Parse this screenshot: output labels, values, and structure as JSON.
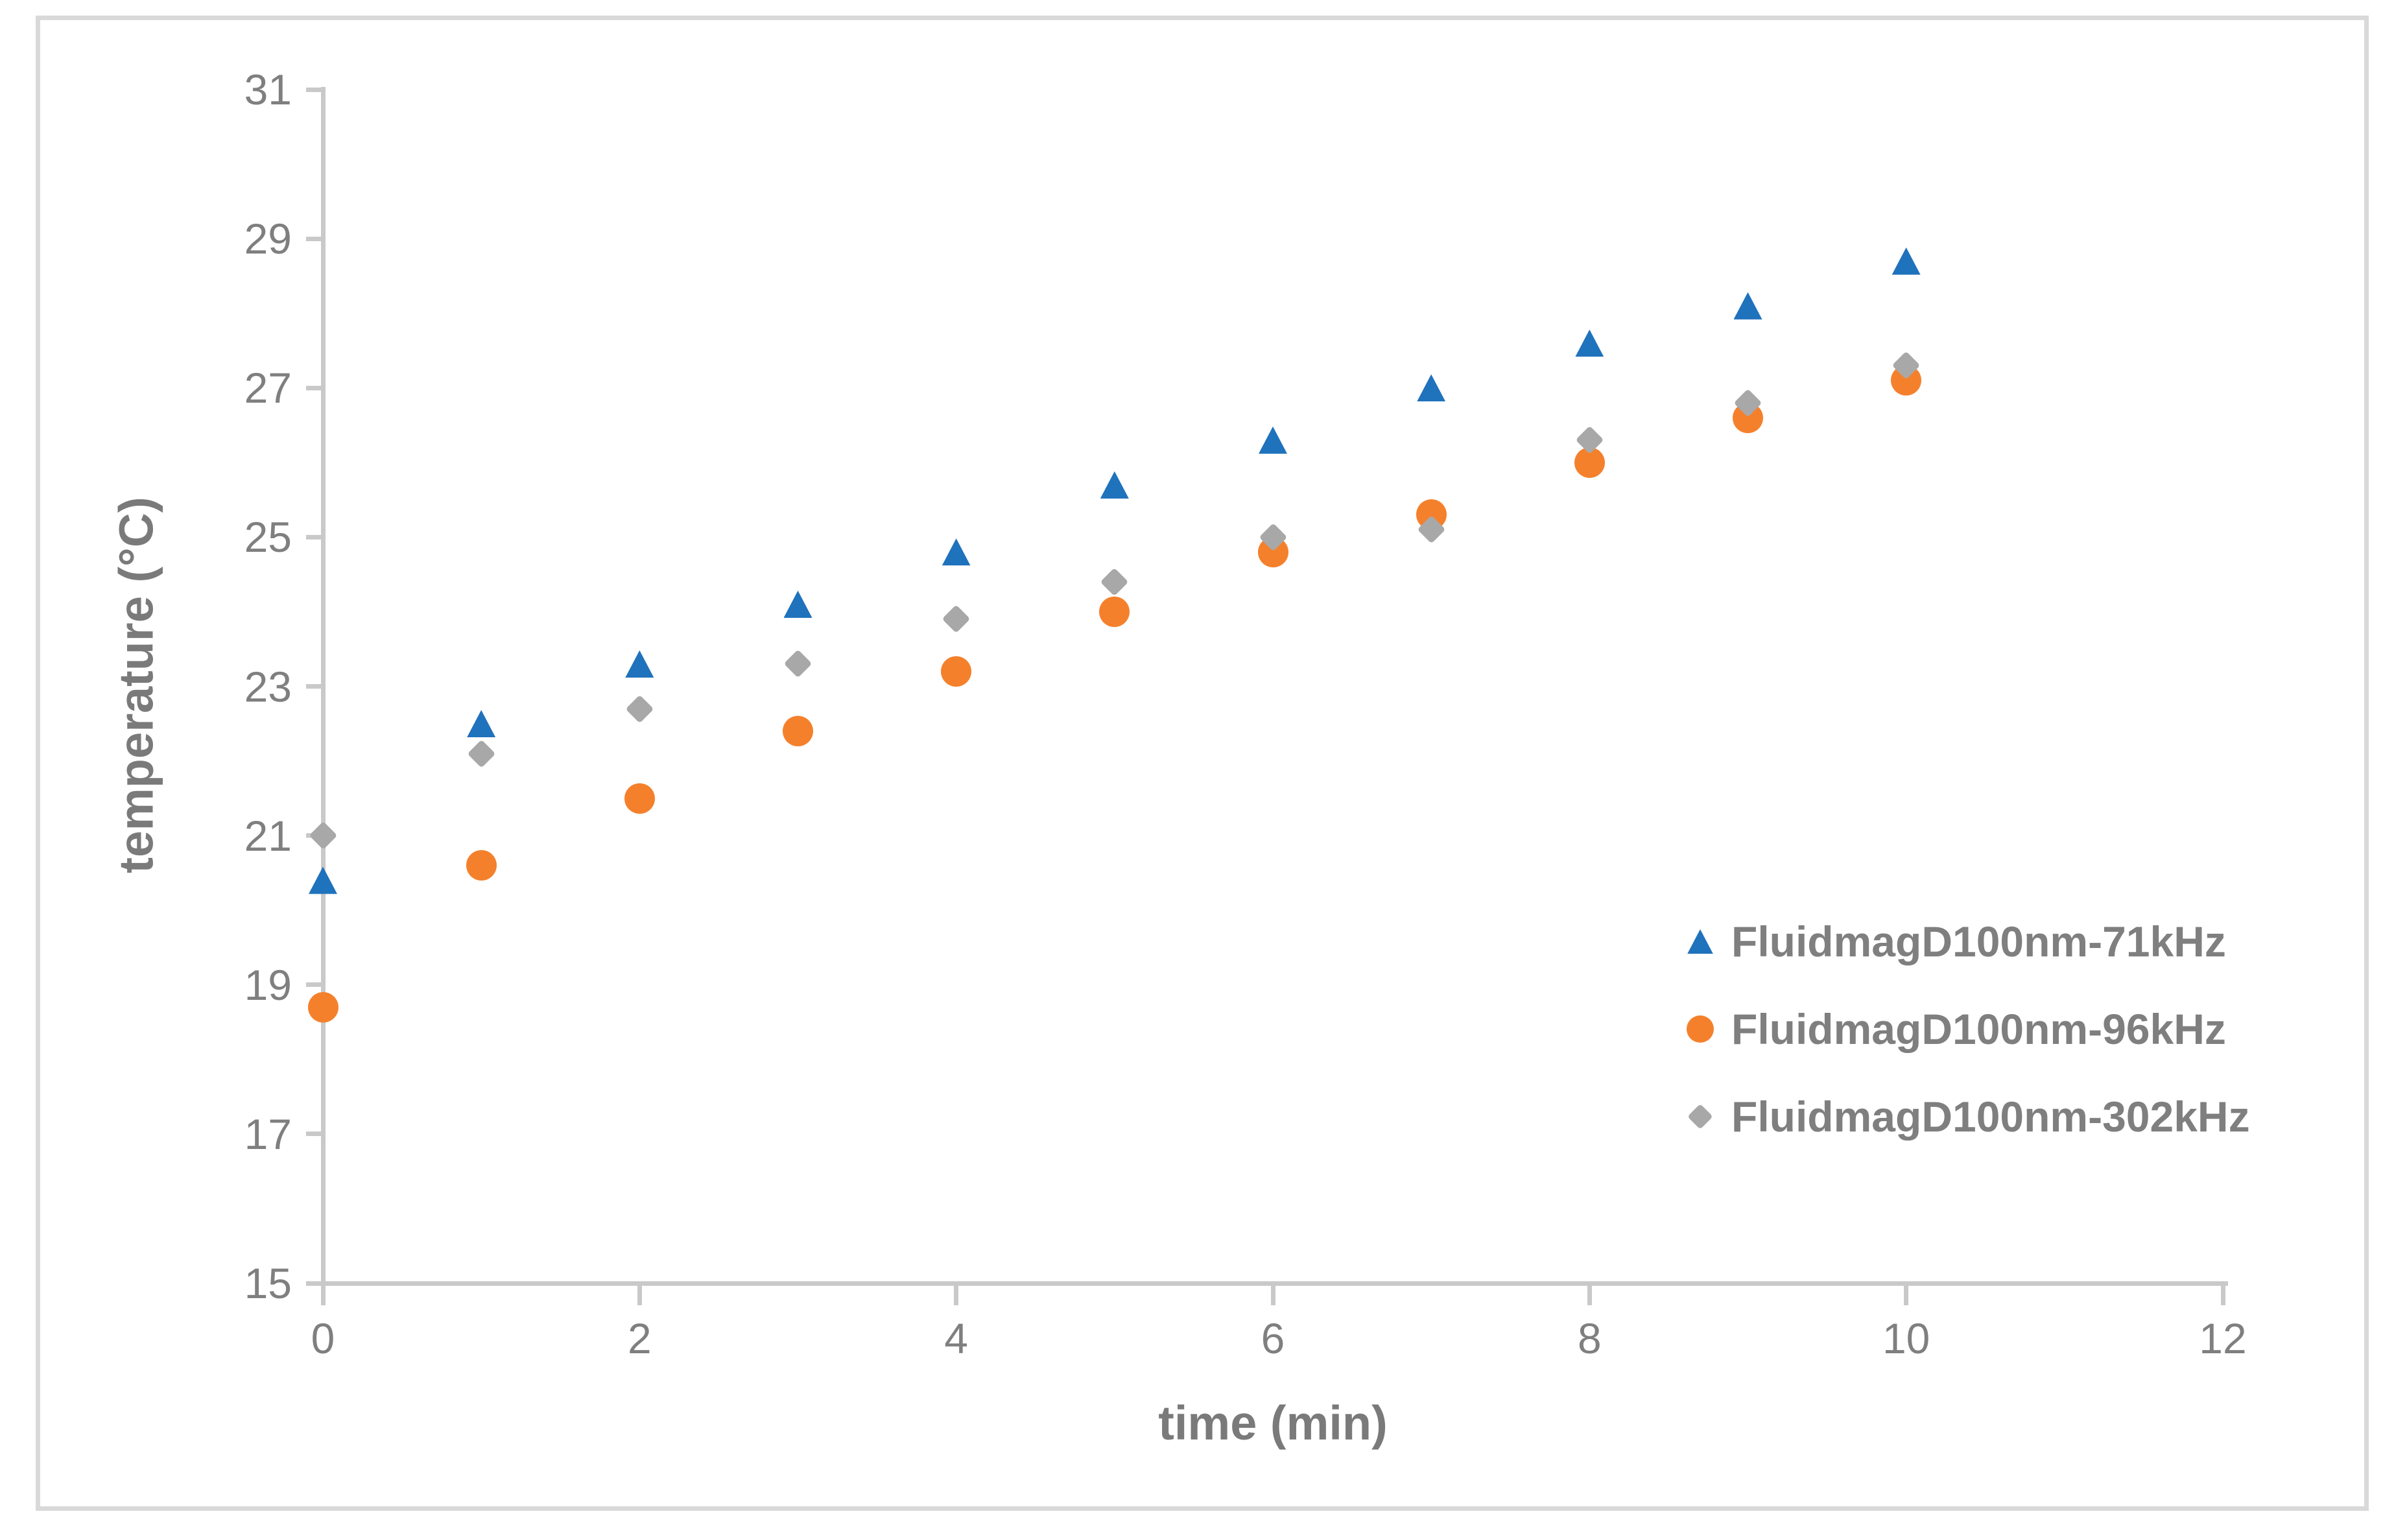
{
  "figure": {
    "background_color": "#ffffff",
    "border_color": "#d9d9d9"
  },
  "chart_data": {
    "type": "scatter",
    "title": "",
    "xlabel": "time (min)",
    "ylabel": "temperature (°C)",
    "xlim": [
      0,
      12
    ],
    "ylim": [
      15,
      31
    ],
    "x_ticks": [
      0,
      2,
      4,
      6,
      8,
      10,
      12
    ],
    "y_ticks": [
      15,
      17,
      19,
      21,
      23,
      25,
      27,
      29,
      31
    ],
    "grid": false,
    "legend_position": "right-middle-inside",
    "axis_color": "#c9c9c9",
    "tick_label_color": "#7f7f7f",
    "x": [
      0,
      1,
      2,
      3,
      4,
      5,
      6,
      7,
      8,
      9,
      10
    ],
    "series": [
      {
        "name": "FluidmagD100nm-71kHz",
        "marker": "triangle",
        "color": "#1f72bc",
        "values": [
          20.4,
          22.5,
          23.3,
          24.1,
          24.8,
          25.7,
          26.3,
          27.0,
          27.6,
          28.1,
          28.7
        ]
      },
      {
        "name": "FluidmagD100nm-96kHz",
        "marker": "circle",
        "color": "#f5802c",
        "values": [
          18.7,
          20.6,
          21.5,
          22.4,
          23.2,
          24.0,
          24.8,
          25.3,
          26.0,
          26.6,
          27.1
        ]
      },
      {
        "name": "FluidmagD100nm-302kHz",
        "marker": "diamond",
        "color": "#a8a8a8",
        "values": [
          21.0,
          22.1,
          22.7,
          23.3,
          23.9,
          24.4,
          25.0,
          25.1,
          26.3,
          26.8,
          27.3
        ]
      }
    ]
  }
}
